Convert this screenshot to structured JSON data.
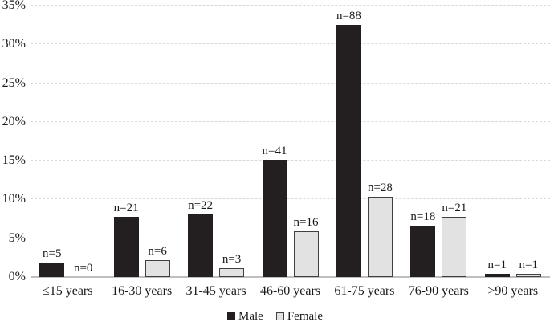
{
  "chart_data": {
    "type": "bar",
    "title": "",
    "xlabel": "",
    "ylabel": "",
    "categories": [
      "≤15 years",
      "16-30 years",
      "31-45 years",
      "46-60 years",
      "61-75 years",
      "76-90 years",
      ">90 years"
    ],
    "series": [
      {
        "name": "Male",
        "counts": [
          5,
          21,
          22,
          41,
          88,
          18,
          1
        ],
        "percents": [
          1.85,
          7.75,
          8.12,
          15.13,
          32.47,
          6.64,
          0.37
        ],
        "fill": "#231f20",
        "border": "#231f20"
      },
      {
        "name": "Female",
        "counts": [
          0,
          6,
          3,
          16,
          28,
          21,
          1
        ],
        "percents": [
          0,
          2.21,
          1.11,
          5.9,
          10.33,
          7.75,
          0.37
        ],
        "fill": "#e2e2e2",
        "border": "#404040"
      }
    ],
    "bar_label_prefix": "n=",
    "y_ticks": [
      "0%",
      "5%",
      "10%",
      "15%",
      "20%",
      "25%",
      "30%",
      "35%"
    ],
    "ylim": [
      0,
      35
    ],
    "y_tick_step": 5,
    "grid": "horizontal-dashed",
    "legend_position": "bottom-center",
    "colors": {
      "gridline": "#d9d9d9",
      "axis": "#bfbfbf",
      "text": "#1a1a1a",
      "background": "#ffffff"
    }
  }
}
